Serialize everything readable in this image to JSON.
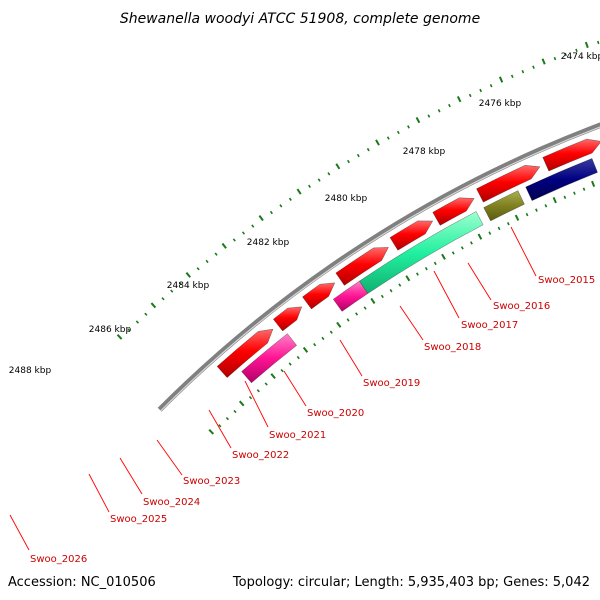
{
  "title": "Shewanella woodyi ATCC 51908, complete genome",
  "accession": "Accession: NC_010506",
  "topology": "Topology: circular; Length: 5,935,403 bp; Genes: 5,042",
  "kbp_labels": [
    "2474 kbp",
    "2476 kbp",
    "2478 kbp",
    "2480 kbp",
    "2482 kbp",
    "2484 kbp",
    "2486 kbp",
    "2488 kbp"
  ],
  "gene_labels": [
    "Swoo_2015",
    "Swoo_2016",
    "Swoo_2017",
    "Swoo_2018",
    "Swoo_2019",
    "Swoo_2020",
    "Swoo_2021",
    "Swoo_2022",
    "Swoo_2023",
    "Swoo_2024",
    "Swoo_2025",
    "Swoo_2026"
  ],
  "colors": {
    "backbone": "#808080",
    "cds": "#ff0000",
    "tick": "#1a7a1a",
    "label_line": "#ff0000",
    "label_text": "#cc0000"
  }
}
